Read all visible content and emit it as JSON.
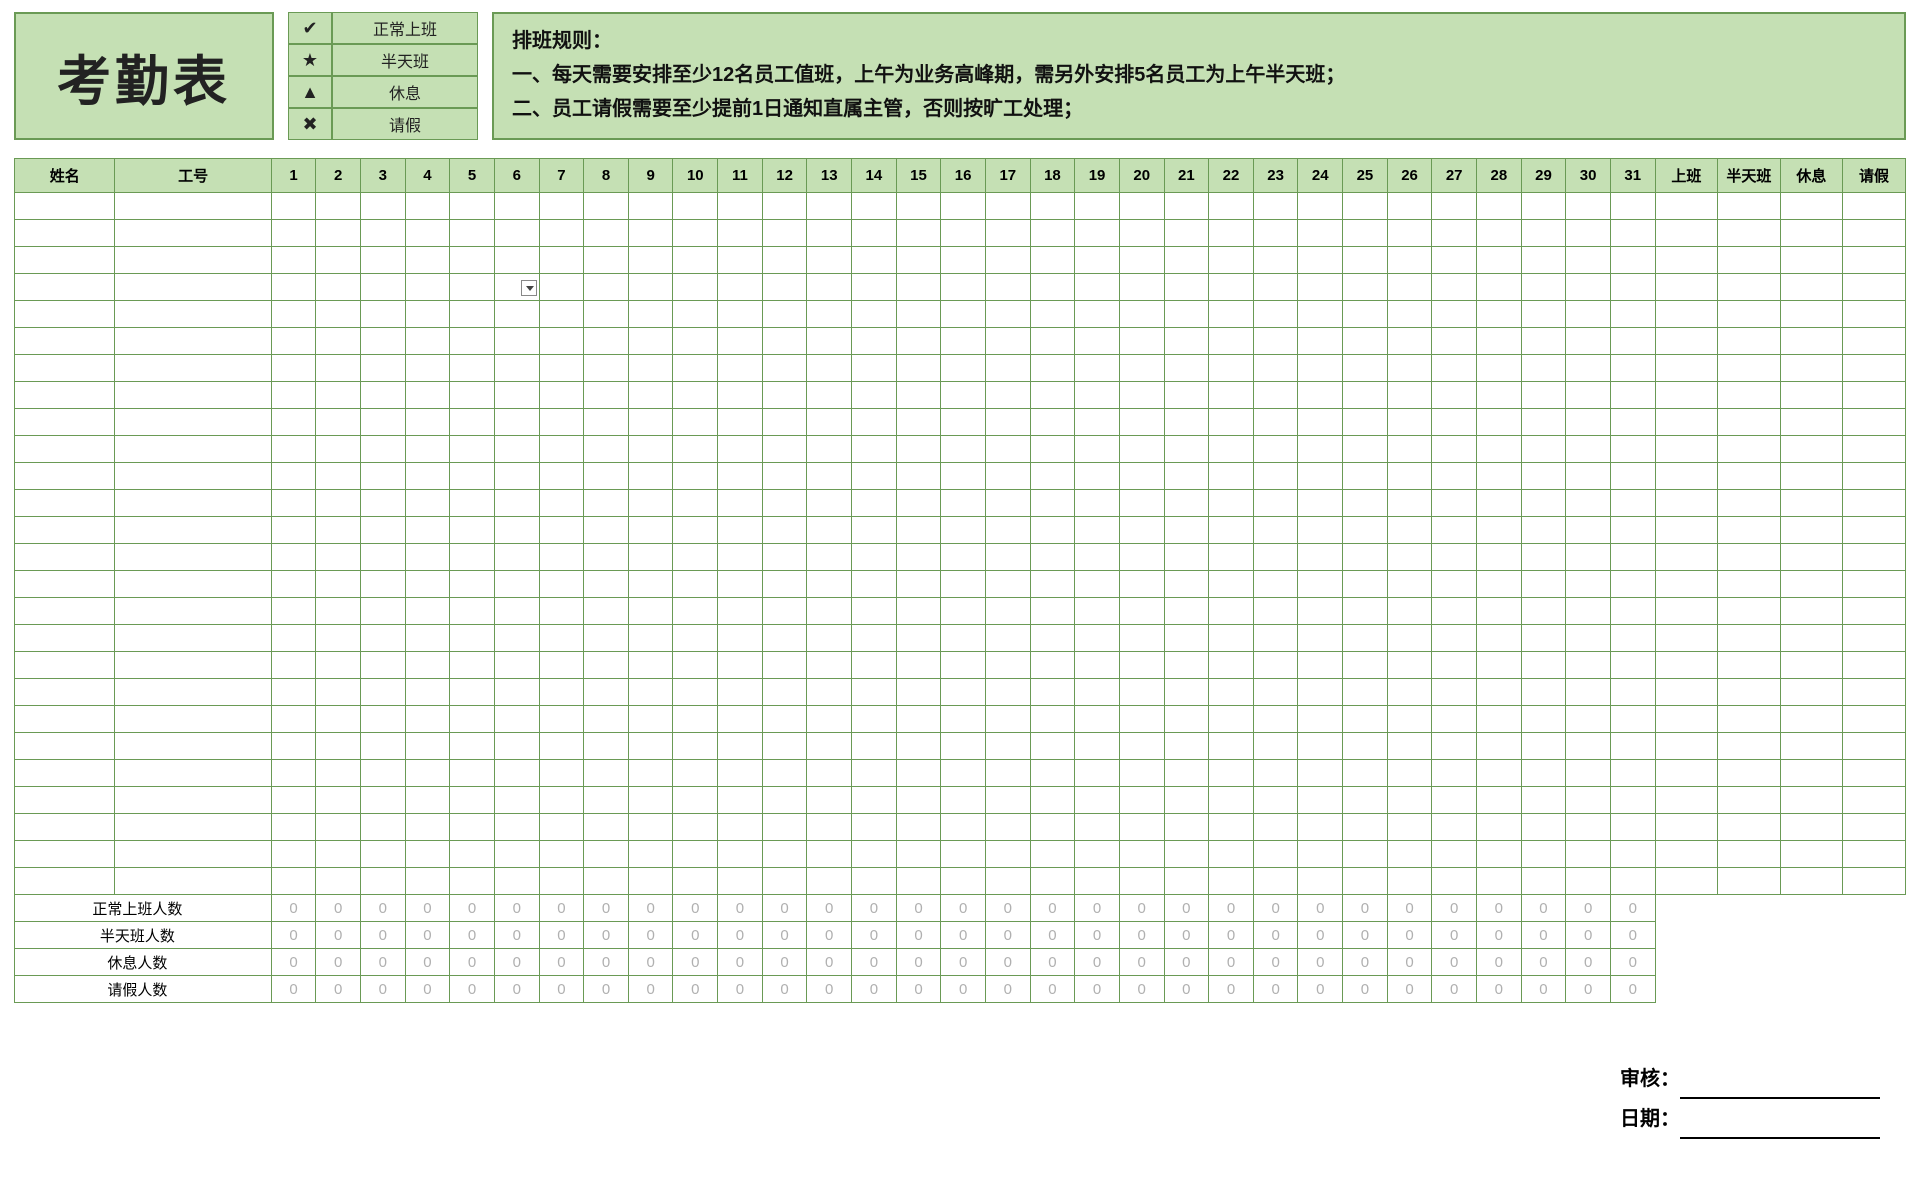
{
  "colors": {
    "header_bg": "#c5e0b4",
    "border": "#6a9a55",
    "count_text": "#b0b0b0",
    "page_bg": "#ffffff"
  },
  "title": "考勤表",
  "legend": [
    {
      "symbol": "✔",
      "label": "正常上班"
    },
    {
      "symbol": "★",
      "label": "半天班"
    },
    {
      "symbol": "▲",
      "label": "休息"
    },
    {
      "symbol": "✖",
      "label": "请假"
    }
  ],
  "rules_title": "排班规则：",
  "rules_lines": [
    "一、每天需要安排至少12名员工值班，上午为业务高峰期，需另外安排5名员工为上午半天班；",
    "二、员工请假需要至少提前1日通知直属主管，否则按旷工处理；"
  ],
  "columns": {
    "name": "姓名",
    "emp_no": "工号",
    "summary": [
      "上班",
      "半天班",
      "休息",
      "请假"
    ]
  },
  "day_range": {
    "from": 1,
    "to": 31
  },
  "empty_data_rows": 26,
  "dropdown_cell": {
    "row_index": 3,
    "day": 6
  },
  "summary_rows": [
    {
      "label": "正常上班人数",
      "value": 0
    },
    {
      "label": "半天班人数",
      "value": 0
    },
    {
      "label": "休息人数",
      "value": 0
    },
    {
      "label": "请假人数",
      "value": 0
    }
  ],
  "signature": {
    "approve_label": "审核：",
    "date_label": "日期："
  },
  "typography": {
    "title_fontsize": 54,
    "rules_fontsize": 20,
    "th_fontsize": 15,
    "legend_fontsize": 16
  }
}
